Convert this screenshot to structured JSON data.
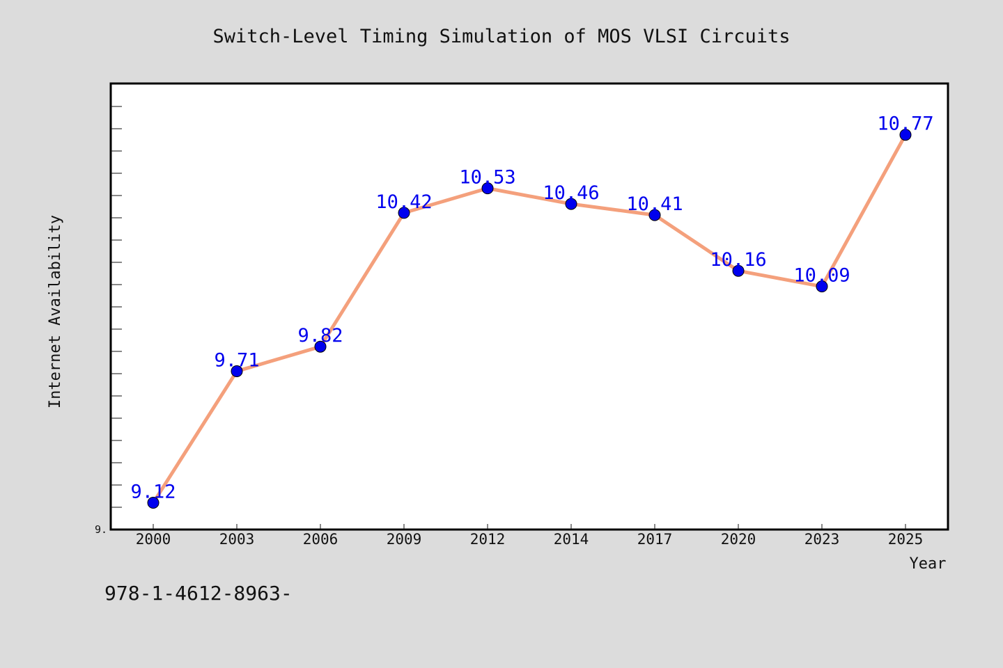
{
  "chart_data": {
    "type": "line",
    "title": "Switch-Level Timing Simulation of MOS VLSI Circuits",
    "xlabel": "Year",
    "ylabel": "Internet Availability",
    "categories": [
      "2000",
      "2003",
      "2006",
      "2009",
      "2012",
      "2014",
      "2017",
      "2020",
      "2023",
      "2025"
    ],
    "values": [
      9.12,
      9.71,
      9.82,
      10.42,
      10.53,
      10.46,
      10.41,
      10.16,
      10.09,
      10.77
    ],
    "data_labels": [
      "9.12",
      "9.71",
      "9.82",
      "10.42",
      "10.53",
      "10.46",
      "10.41",
      "10.16",
      "10.09",
      "10.77"
    ],
    "y_tick_label": "9.",
    "ylim": [
      9.0,
      11.0
    ],
    "grid": false,
    "line_color": "#f4a07c",
    "marker_color": "#0000ee",
    "label_color": "#0000ee",
    "plot_background": "#ffffff",
    "page_background": "#dcdcdc"
  },
  "footer": {
    "text": "978-1-4612-8963-"
  }
}
